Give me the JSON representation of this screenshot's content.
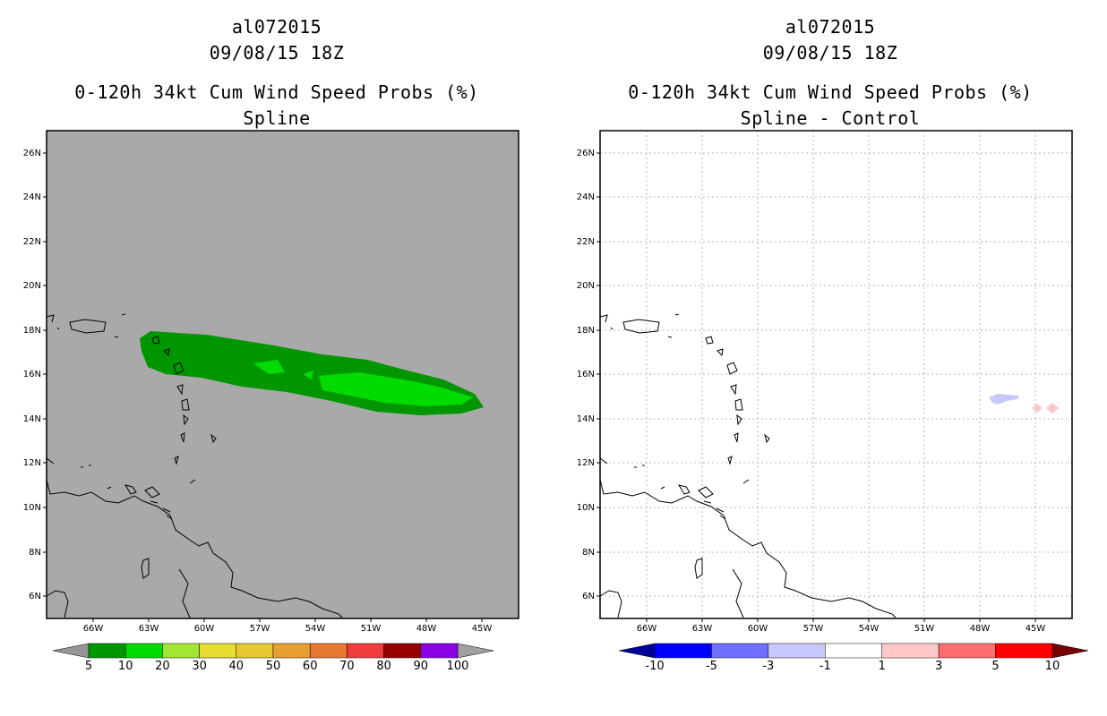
{
  "left_panel": {
    "title_line1": "al072015",
    "title_line2": "09/08/15 18Z",
    "title_line3": "0-120h 34kt Cum Wind Speed Probs (%)",
    "title_line4": "Spline",
    "background_color": "#a9a9a9",
    "lat_labels": [
      "26N",
      "24N",
      "22N",
      "20N",
      "18N",
      "16N",
      "14N",
      "12N",
      "10N",
      "8N",
      "6N"
    ],
    "lon_labels": [
      "66W",
      "63W",
      "60W",
      "57W",
      "54W",
      "51W",
      "48W",
      "45W"
    ],
    "colorbar": {
      "colors": [
        "#009600",
        "#00dc00",
        "#a0e632",
        "#e6dc32",
        "#e6c832",
        "#e6a032",
        "#e67832",
        "#f03c3c",
        "#960000",
        "#8c00e6"
      ],
      "labels": [
        "5",
        "10",
        "20",
        "30",
        "40",
        "50",
        "60",
        "70",
        "80",
        "90",
        "100"
      ],
      "under_color": "#969696",
      "over_color": "#a0a0a0"
    }
  },
  "right_panel": {
    "title_line1": "al072015",
    "title_line2": "09/08/15 18Z",
    "title_line3": "0-120h 34kt Cum Wind Speed Probs (%)",
    "title_line4": "Spline - Control",
    "background_color": "#ffffff",
    "lat_labels": [
      "26N",
      "24N",
      "22N",
      "20N",
      "18N",
      "16N",
      "14N",
      "12N",
      "10N",
      "8N",
      "6N"
    ],
    "lon_labels": [
      "66W",
      "63W",
      "60W",
      "57W",
      "54W",
      "51W",
      "48W",
      "45W"
    ],
    "colorbar": {
      "colors": [
        "#0000ff",
        "#6e6eff",
        "#c8c8ff",
        "#ffffff",
        "#ffc8c8",
        "#ff6e6e",
        "#ff0000"
      ],
      "labels": [
        "-10",
        "-5",
        "-3",
        "-1",
        "1",
        "3",
        "5",
        "10"
      ],
      "under_color": "#000096",
      "over_color": "#780000"
    }
  }
}
